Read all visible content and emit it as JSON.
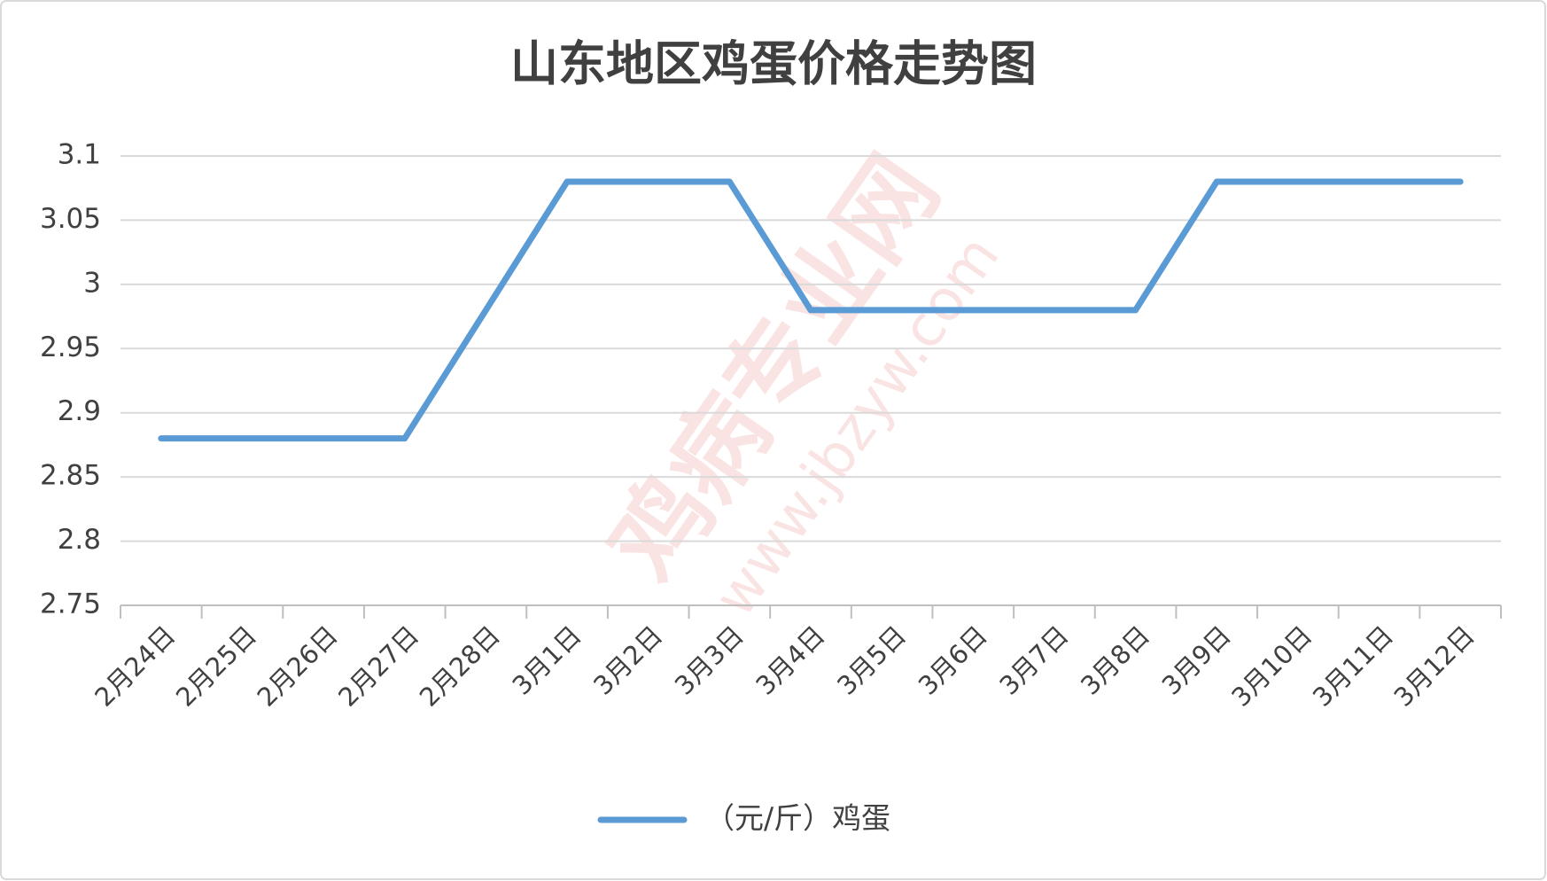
{
  "chart_data": {
    "type": "line",
    "title": "山东地区鸡蛋价格走势图",
    "categories": [
      "2月24日",
      "2月25日",
      "2月26日",
      "2月27日",
      "2月28日",
      "3月1日",
      "3月2日",
      "3月3日",
      "3月4日",
      "3月5日",
      "3月6日",
      "3月7日",
      "3月8日",
      "3月9日",
      "3月10日",
      "3月11日",
      "3月12日"
    ],
    "series": [
      {
        "name": "（元/斤）鸡蛋",
        "color": "#5b9bd5",
        "values": [
          2.88,
          2.88,
          2.88,
          2.88,
          2.98,
          3.08,
          3.08,
          3.08,
          2.98,
          2.98,
          2.98,
          2.98,
          2.98,
          3.08,
          3.08,
          3.08,
          3.08
        ]
      }
    ],
    "ylim": [
      2.75,
      3.1
    ],
    "yticks": [
      2.75,
      2.8,
      2.85,
      2.9,
      2.95,
      3,
      3.05,
      3.1
    ],
    "grid": true,
    "legend": "bottom",
    "watermark": [
      "鸡病专业网",
      "www.jbzyw.com"
    ]
  }
}
